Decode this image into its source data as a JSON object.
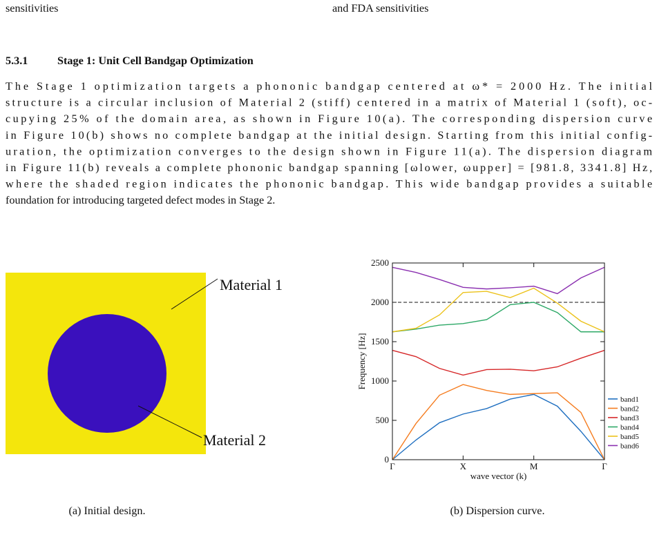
{
  "header_fragments": [
    "sensitivities",
    "and FDA sensitivities"
  ],
  "section": {
    "number": "5.3.1",
    "title": "Stage 1: Unit Cell Bandgap Optimization"
  },
  "paragraph": [
    "The Stage 1 optimization targets a phononic bandgap centered at ω* = 2000 Hz. The initial",
    "structure is a circular inclusion of Material 2 (stiff) centered in a matrix of Material 1 (soft), oc-",
    "cupying 25% of the domain area, as shown in Figure 10(a). The corresponding dispersion curve",
    "in Figure 10(b) shows no complete bandgap at the initial design. Starting from this initial config-",
    "uration, the optimization converges to the design shown in Figure 11(a). The dispersion diagram",
    "in Figure 11(b) reveals a complete phononic bandgap spanning [ωlower, ωupper] = [981.8, 3341.8] Hz,",
    "where the shaded region indicates the phononic bandgap. This wide bandgap provides a suitable",
    "foundation for introducing targeted defect modes in Stage 2."
  ],
  "figure": {
    "design_labels": [
      "Material 1",
      "Material 2"
    ],
    "captions": [
      "(a) Initial design.",
      "(b) Dispersion curve."
    ]
  },
  "chart_data": {
    "type": "line",
    "x": [
      0,
      1,
      2,
      3,
      4,
      5,
      6,
      7,
      8,
      9
    ],
    "xlim": [
      0,
      9
    ],
    "xticks": [
      {
        "value": 0,
        "label": "Γ"
      },
      {
        "value": 3,
        "label": "X"
      },
      {
        "value": 6,
        "label": "M"
      },
      {
        "value": 9,
        "label": "Γ"
      }
    ],
    "ylim": [
      0,
      2500
    ],
    "yticks": [
      0,
      500,
      1000,
      1500,
      2000,
      2500
    ],
    "xlabel": "wave vector (k)",
    "ylabel": "Frequency [Hz]",
    "reference_line": 2000,
    "legend": "right",
    "series": [
      {
        "name": "band1",
        "color": "#1f6fc0",
        "values": [
          0,
          250,
          470,
          580,
          650,
          770,
          830,
          680,
          360,
          0
        ]
      },
      {
        "name": "band2",
        "color": "#f57c1f",
        "values": [
          0,
          460,
          820,
          955,
          880,
          830,
          840,
          850,
          600,
          0
        ]
      },
      {
        "name": "band3",
        "color": "#d62728",
        "values": [
          1390,
          1310,
          1160,
          1075,
          1145,
          1150,
          1130,
          1180,
          1290,
          1390
        ]
      },
      {
        "name": "band4",
        "color": "#2ca866",
        "values": [
          1625,
          1660,
          1710,
          1730,
          1780,
          1970,
          2000,
          1870,
          1625,
          1625
        ]
      },
      {
        "name": "band5",
        "color": "#ecc21a",
        "values": [
          1625,
          1670,
          1840,
          2125,
          2140,
          2060,
          2180,
          1990,
          1760,
          1625
        ]
      },
      {
        "name": "band6",
        "color": "#8a2fb0",
        "values": [
          2445,
          2380,
          2290,
          2190,
          2170,
          2185,
          2205,
          2110,
          2310,
          2445
        ]
      }
    ]
  }
}
